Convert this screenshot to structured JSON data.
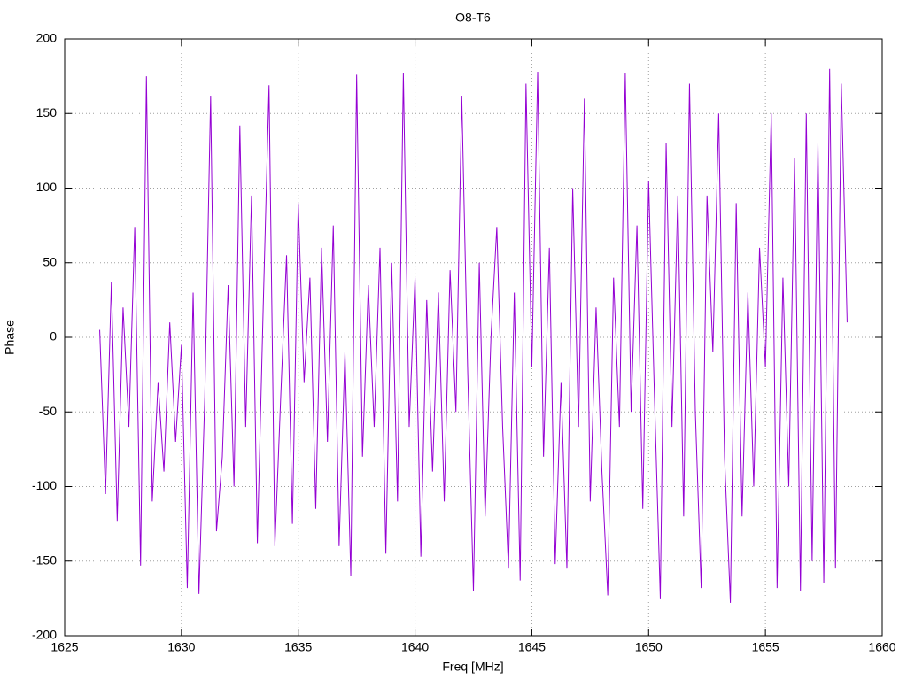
{
  "chart_data": {
    "type": "line",
    "title": "O8-T6",
    "x_label": "Freq [MHz]",
    "y_label": "Phase",
    "xlim": [
      1625,
      1660
    ],
    "xticks": [
      1625,
      1630,
      1635,
      1640,
      1645,
      1650,
      1655,
      1660
    ],
    "ylim": [
      -200,
      200
    ],
    "yticks": [
      -200,
      -150,
      -100,
      -50,
      0,
      50,
      100,
      150,
      200
    ],
    "grid": true,
    "series": [
      {
        "color": "#9400d3",
        "x": [
          1626.5,
          1626.75,
          1627,
          1627.25,
          1627.5,
          1627.75,
          1628,
          1628.25,
          1628.5,
          1628.75,
          1629,
          1629.25,
          1629.5,
          1629.75,
          1630,
          1630.25,
          1630.5,
          1630.75,
          1631,
          1631.25,
          1631.5,
          1631.75,
          1632,
          1632.25,
          1632.5,
          1632.75,
          1633,
          1633.25,
          1633.5,
          1633.75,
          1634,
          1634.25,
          1634.5,
          1634.75,
          1635,
          1635.25,
          1635.5,
          1635.75,
          1636,
          1636.25,
          1636.5,
          1636.75,
          1637,
          1637.25,
          1637.5,
          1637.75,
          1638,
          1638.25,
          1638.5,
          1638.75,
          1639,
          1639.25,
          1639.5,
          1639.75,
          1640,
          1640.25,
          1640.5,
          1640.75,
          1641,
          1641.25,
          1641.5,
          1641.75,
          1642,
          1642.25,
          1642.5,
          1642.75,
          1643,
          1643.25,
          1643.5,
          1643.75,
          1644,
          1644.25,
          1644.5,
          1644.75,
          1645,
          1645.25,
          1645.5,
          1645.75,
          1646,
          1646.25,
          1646.5,
          1646.75,
          1647,
          1647.25,
          1647.5,
          1647.75,
          1648,
          1648.25,
          1648.5,
          1648.75,
          1649,
          1649.25,
          1649.5,
          1649.75,
          1650,
          1650.25,
          1650.5,
          1650.75,
          1651,
          1651.25,
          1651.5,
          1651.75,
          1652,
          1652.25,
          1652.5,
          1652.75,
          1653,
          1653.25,
          1653.5,
          1653.75,
          1654,
          1654.25,
          1654.5,
          1654.75,
          1655,
          1655.25,
          1655.5,
          1655.75,
          1656,
          1656.25,
          1656.5,
          1656.75,
          1657,
          1657.25,
          1657.5,
          1657.75,
          1658,
          1658.25,
          1658.5
        ],
        "values": [
          5,
          -105,
          37,
          -123,
          20,
          -60,
          74,
          -153,
          175,
          -110,
          -30,
          -90,
          10,
          -70,
          -5,
          -168,
          30,
          -172,
          -40,
          162,
          -130,
          -80,
          35,
          -100,
          142,
          -60,
          95,
          -138,
          20,
          169,
          -140,
          -40,
          55,
          -125,
          90,
          -30,
          40,
          -115,
          60,
          -70,
          75,
          -140,
          -10,
          -160,
          176,
          -80,
          35,
          -60,
          60,
          -145,
          50,
          -110,
          177,
          -60,
          40,
          -147,
          25,
          -90,
          30,
          -110,
          45,
          -50,
          162,
          -20,
          -170,
          50,
          -120,
          0,
          74,
          -60,
          -155,
          30,
          -163,
          170,
          -20,
          178,
          -80,
          60,
          -152,
          -30,
          -155,
          100,
          -60,
          160,
          -110,
          20,
          -90,
          -173,
          40,
          -60,
          177,
          -50,
          75,
          -115,
          105,
          -40,
          -175,
          130,
          -60,
          95,
          -120,
          170,
          -50,
          -168,
          95,
          -10,
          150,
          -80,
          -178,
          90,
          -120,
          30,
          -100,
          60,
          -20,
          150,
          -168,
          40,
          -100,
          120,
          -170,
          150,
          -150,
          130,
          -165,
          180,
          -155,
          170,
          10
        ]
      }
    ]
  }
}
